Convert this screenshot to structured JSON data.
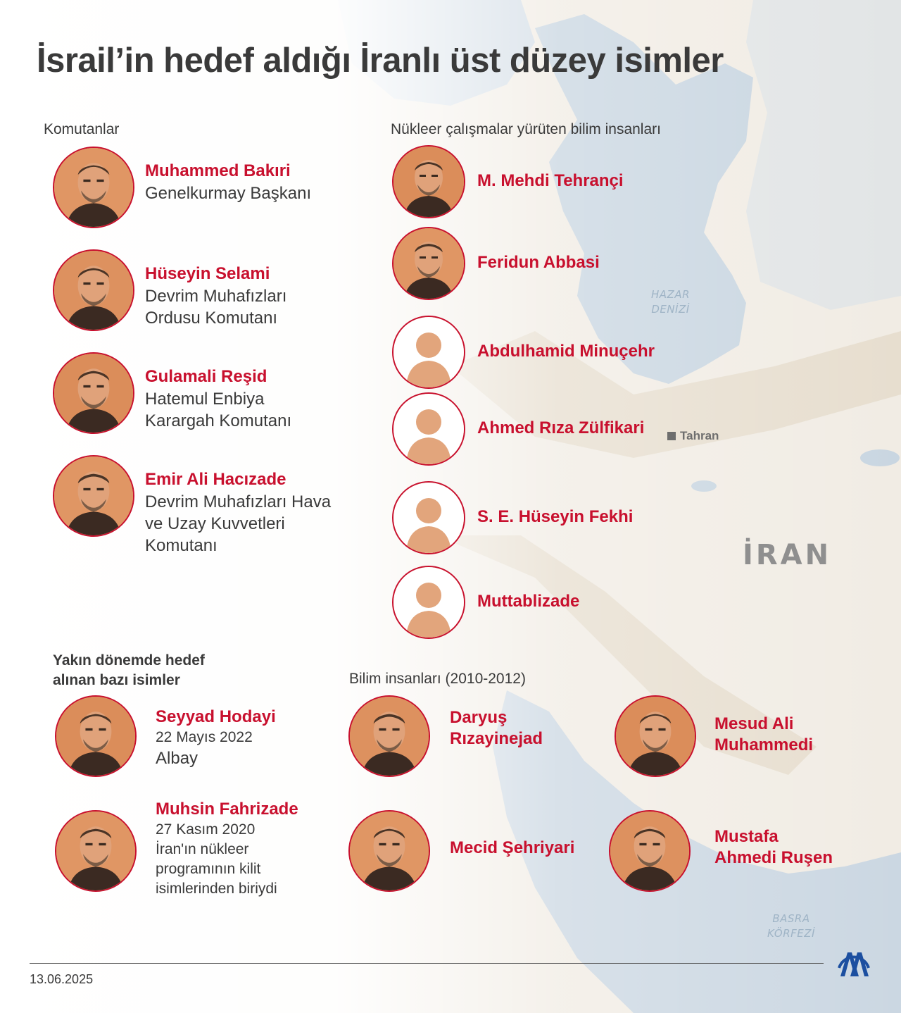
{
  "title": "İsrail’in hedef aldığı İranlı üst düzey isimler",
  "map": {
    "hazar": "HAZAR\nDENİZİ",
    "basra": "BASRA\nKÖRFEZİ",
    "country": "İRAN",
    "capital": "Tahran"
  },
  "sections": {
    "commanders": "Komutanlar",
    "scientists": "Nükleer çalışmalar yürüten bilim insanları",
    "recent": "Yakın dönemde hedef\nalınan bazı isimler",
    "past_scientists": "Bilim insanları (2010-2012)"
  },
  "commanders": [
    {
      "name": "Muhammed Bakıri",
      "desc": "Genelkurmay Başkanı",
      "photo": "photo"
    },
    {
      "name": "Hüseyin Selami",
      "desc": "Devrim Muhafızları\nOrdusu Komutanı",
      "photo": "photo"
    },
    {
      "name": "Gulamali Reşid",
      "desc": "Hatemul Enbiya\nKarargah Komutanı",
      "photo": "photo"
    },
    {
      "name": "Emir Ali Hacızade",
      "desc": "Devrim Muhafızları Hava\nve Uzay Kuvvetleri\nKomutanı",
      "photo": "photo"
    }
  ],
  "scientists": [
    {
      "name": "M. Mehdi Tehrançi",
      "photo": "photo"
    },
    {
      "name": "Feridun Abbasi",
      "photo": "photo"
    },
    {
      "name": "Abdulhamid Minuçehr",
      "photo": "silhouette"
    },
    {
      "name": "Ahmed Rıza Zülfikari",
      "photo": "silhouette"
    },
    {
      "name": "S. E. Hüseyin Fekhi",
      "photo": "silhouette"
    },
    {
      "name": "Muttablizade",
      "photo": "silhouette"
    }
  ],
  "recent": [
    {
      "name": "Seyyad Hodayi",
      "date": "22 Mayıs 2022",
      "desc": "Albay"
    },
    {
      "name": "Muhsin Fahrizade",
      "date": "27 Kasım 2020",
      "desc": "İran'ın nükleer\nprogramının kilit\nisimlerinden biriydi"
    }
  ],
  "past_scientists": [
    {
      "name": "Daryuş\nRızayinejad"
    },
    {
      "name": "Mesud Ali\nMuhammedi"
    },
    {
      "name": "Mecid Şehriyari"
    },
    {
      "name": "Mustafa\nAhmedi Ruşen"
    }
  ],
  "footer": {
    "date": "13.06.2025",
    "logo": "aa-logo-icon"
  },
  "colors": {
    "accent": "#c8102e",
    "water": "#cfdbe6",
    "land": "#eee6d8",
    "photo_tint": "#e39a64"
  }
}
